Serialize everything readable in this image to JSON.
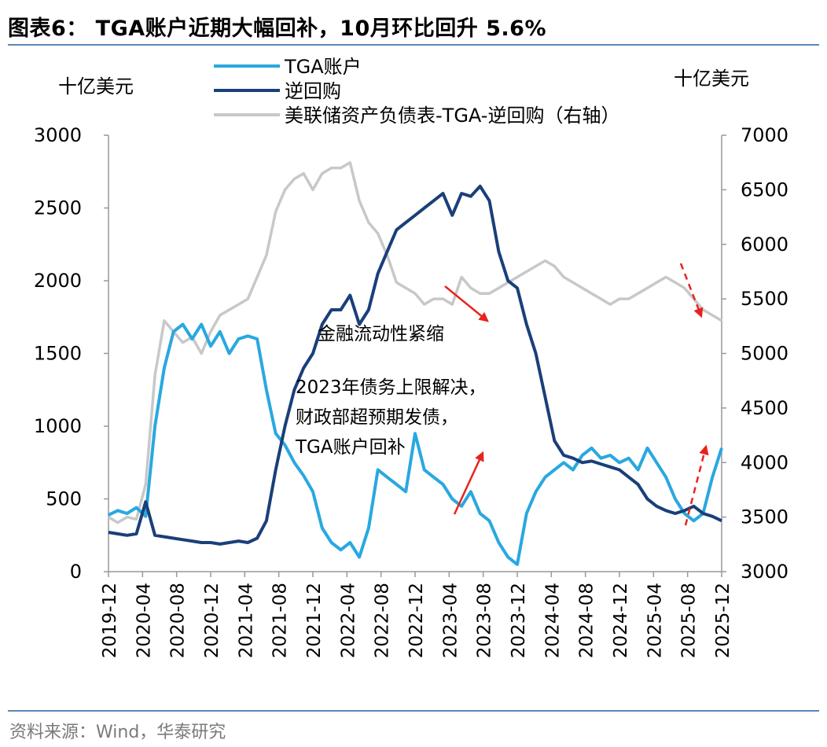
{
  "title": "图表6： TGA账户近期大幅回补，10月环比回升 5.6%",
  "source": "资料来源：Wind，华泰研究",
  "colors": {
    "tga": "#29a8e0",
    "rrp": "#1a3f7a",
    "fed": "#c8c8c8",
    "arrow": "#e8231f",
    "rule": "#5b87b8"
  },
  "chart_data": {
    "type": "line",
    "left_axis_unit": "十亿美元",
    "right_axis_unit": "十亿美元",
    "ylim_left": [
      0,
      3000
    ],
    "ylim_right": [
      3000,
      7000
    ],
    "yticks_left": [
      "0",
      "500",
      "1000",
      "1500",
      "2000",
      "2500",
      "3000"
    ],
    "yticks_right": [
      "3000",
      "3500",
      "4000",
      "4500",
      "5000",
      "5500",
      "6000",
      "6500",
      "7000"
    ],
    "xticks": [
      "2019-12",
      "2020-04",
      "2020-08",
      "2020-12",
      "2021-04",
      "2021-08",
      "2021-12",
      "2022-04",
      "2022-08",
      "2022-12",
      "2023-04",
      "2023-08",
      "2023-12",
      "2024-04",
      "2024-08",
      "2024-12",
      "2025-04",
      "2025-08",
      "2025-12"
    ],
    "legend": [
      "TGA账户",
      "逆回购",
      "美联储资产负债表-TGA-逆回购（右轴）"
    ],
    "series": [
      {
        "name": "TGA账户",
        "axis": "left",
        "points": [
          [
            0,
            390
          ],
          [
            1,
            420
          ],
          [
            2,
            400
          ],
          [
            3,
            440
          ],
          [
            4,
            380
          ],
          [
            5,
            1000
          ],
          [
            6,
            1400
          ],
          [
            7,
            1650
          ],
          [
            8,
            1700
          ],
          [
            9,
            1600
          ],
          [
            10,
            1700
          ],
          [
            11,
            1550
          ],
          [
            12,
            1650
          ],
          [
            13,
            1500
          ],
          [
            14,
            1600
          ],
          [
            15,
            1620
          ],
          [
            16,
            1600
          ],
          [
            17,
            1250
          ],
          [
            18,
            950
          ],
          [
            19,
            870
          ],
          [
            20,
            750
          ],
          [
            21,
            660
          ],
          [
            22,
            550
          ],
          [
            23,
            300
          ],
          [
            24,
            200
          ],
          [
            25,
            150
          ],
          [
            26,
            200
          ],
          [
            27,
            100
          ],
          [
            28,
            300
          ],
          [
            29,
            700
          ],
          [
            30,
            650
          ],
          [
            31,
            600
          ],
          [
            32,
            550
          ],
          [
            33,
            950
          ],
          [
            34,
            700
          ],
          [
            35,
            650
          ],
          [
            36,
            600
          ],
          [
            37,
            500
          ],
          [
            38,
            450
          ],
          [
            39,
            550
          ],
          [
            40,
            400
          ],
          [
            41,
            350
          ],
          [
            42,
            200
          ],
          [
            43,
            100
          ],
          [
            44,
            50
          ],
          [
            45,
            400
          ],
          [
            46,
            550
          ],
          [
            47,
            650
          ],
          [
            48,
            700
          ],
          [
            49,
            750
          ],
          [
            50,
            700
          ],
          [
            51,
            800
          ],
          [
            52,
            850
          ],
          [
            53,
            780
          ],
          [
            54,
            800
          ],
          [
            55,
            750
          ],
          [
            56,
            780
          ],
          [
            57,
            700
          ],
          [
            58,
            850
          ],
          [
            59,
            750
          ],
          [
            60,
            650
          ],
          [
            61,
            500
          ],
          [
            62,
            400
          ],
          [
            63,
            350
          ],
          [
            64,
            400
          ],
          [
            65,
            650
          ],
          [
            66,
            850
          ]
        ]
      },
      {
        "name": "逆回购",
        "axis": "left",
        "points": [
          [
            0,
            270
          ],
          [
            1,
            260
          ],
          [
            2,
            250
          ],
          [
            3,
            260
          ],
          [
            4,
            480
          ],
          [
            5,
            250
          ],
          [
            6,
            240
          ],
          [
            7,
            230
          ],
          [
            8,
            220
          ],
          [
            9,
            210
          ],
          [
            10,
            200
          ],
          [
            11,
            200
          ],
          [
            12,
            190
          ],
          [
            13,
            200
          ],
          [
            14,
            210
          ],
          [
            15,
            200
          ],
          [
            16,
            230
          ],
          [
            17,
            350
          ],
          [
            18,
            700
          ],
          [
            19,
            1000
          ],
          [
            20,
            1250
          ],
          [
            21,
            1400
          ],
          [
            22,
            1500
          ],
          [
            23,
            1700
          ],
          [
            24,
            1800
          ],
          [
            25,
            1800
          ],
          [
            26,
            1900
          ],
          [
            27,
            1700
          ],
          [
            28,
            1800
          ],
          [
            29,
            2050
          ],
          [
            30,
            2200
          ],
          [
            31,
            2350
          ],
          [
            32,
            2400
          ],
          [
            33,
            2450
          ],
          [
            34,
            2500
          ],
          [
            35,
            2550
          ],
          [
            36,
            2600
          ],
          [
            37,
            2450
          ],
          [
            38,
            2600
          ],
          [
            39,
            2580
          ],
          [
            40,
            2650
          ],
          [
            41,
            2550
          ],
          [
            42,
            2200
          ],
          [
            43,
            2000
          ],
          [
            44,
            1950
          ],
          [
            45,
            1700
          ],
          [
            46,
            1500
          ],
          [
            47,
            1200
          ],
          [
            48,
            900
          ],
          [
            49,
            800
          ],
          [
            50,
            780
          ],
          [
            51,
            750
          ],
          [
            52,
            760
          ],
          [
            53,
            740
          ],
          [
            54,
            720
          ],
          [
            55,
            700
          ],
          [
            56,
            650
          ],
          [
            57,
            600
          ],
          [
            58,
            500
          ],
          [
            59,
            450
          ],
          [
            60,
            420
          ],
          [
            61,
            400
          ],
          [
            62,
            420
          ],
          [
            63,
            450
          ],
          [
            64,
            400
          ],
          [
            65,
            380
          ],
          [
            66,
            350
          ]
        ]
      },
      {
        "name": "美联储资产负债表-TGA-逆回购（右轴）",
        "axis": "right",
        "points": [
          [
            0,
            3500
          ],
          [
            1,
            3450
          ],
          [
            2,
            3500
          ],
          [
            3,
            3480
          ],
          [
            4,
            3800
          ],
          [
            5,
            4800
          ],
          [
            6,
            5300
          ],
          [
            7,
            5200
          ],
          [
            8,
            5100
          ],
          [
            9,
            5150
          ],
          [
            10,
            5000
          ],
          [
            11,
            5200
          ],
          [
            12,
            5350
          ],
          [
            13,
            5400
          ],
          [
            14,
            5450
          ],
          [
            15,
            5500
          ],
          [
            16,
            5700
          ],
          [
            17,
            5900
          ],
          [
            18,
            6300
          ],
          [
            19,
            6500
          ],
          [
            20,
            6600
          ],
          [
            21,
            6650
          ],
          [
            22,
            6500
          ],
          [
            23,
            6650
          ],
          [
            24,
            6700
          ],
          [
            25,
            6700
          ],
          [
            26,
            6750
          ],
          [
            27,
            6400
          ],
          [
            28,
            6200
          ],
          [
            29,
            6100
          ],
          [
            30,
            5900
          ],
          [
            31,
            5650
          ],
          [
            32,
            5600
          ],
          [
            33,
            5550
          ],
          [
            34,
            5450
          ],
          [
            35,
            5500
          ],
          [
            36,
            5500
          ],
          [
            37,
            5450
          ],
          [
            38,
            5700
          ],
          [
            39,
            5600
          ],
          [
            40,
            5550
          ],
          [
            41,
            5550
          ],
          [
            42,
            5600
          ],
          [
            43,
            5650
          ],
          [
            44,
            5700
          ],
          [
            45,
            5750
          ],
          [
            46,
            5800
          ],
          [
            47,
            5850
          ],
          [
            48,
            5800
          ],
          [
            49,
            5700
          ],
          [
            50,
            5650
          ],
          [
            51,
            5600
          ],
          [
            52,
            5550
          ],
          [
            53,
            5500
          ],
          [
            54,
            5450
          ],
          [
            55,
            5500
          ],
          [
            56,
            5500
          ],
          [
            57,
            5550
          ],
          [
            58,
            5600
          ],
          [
            59,
            5650
          ],
          [
            60,
            5700
          ],
          [
            61,
            5650
          ],
          [
            62,
            5600
          ],
          [
            63,
            5500
          ],
          [
            64,
            5400
          ],
          [
            65,
            5350
          ],
          [
            66,
            5300
          ]
        ]
      }
    ],
    "annotations": [
      {
        "name": "liquidity-tightening",
        "text": "金融流动性紧缩"
      },
      {
        "name": "debt-ceiling",
        "lines": [
          "2023年债务上限解决，",
          "财政部超预期发债，",
          "TGA账户回补"
        ]
      }
    ]
  }
}
